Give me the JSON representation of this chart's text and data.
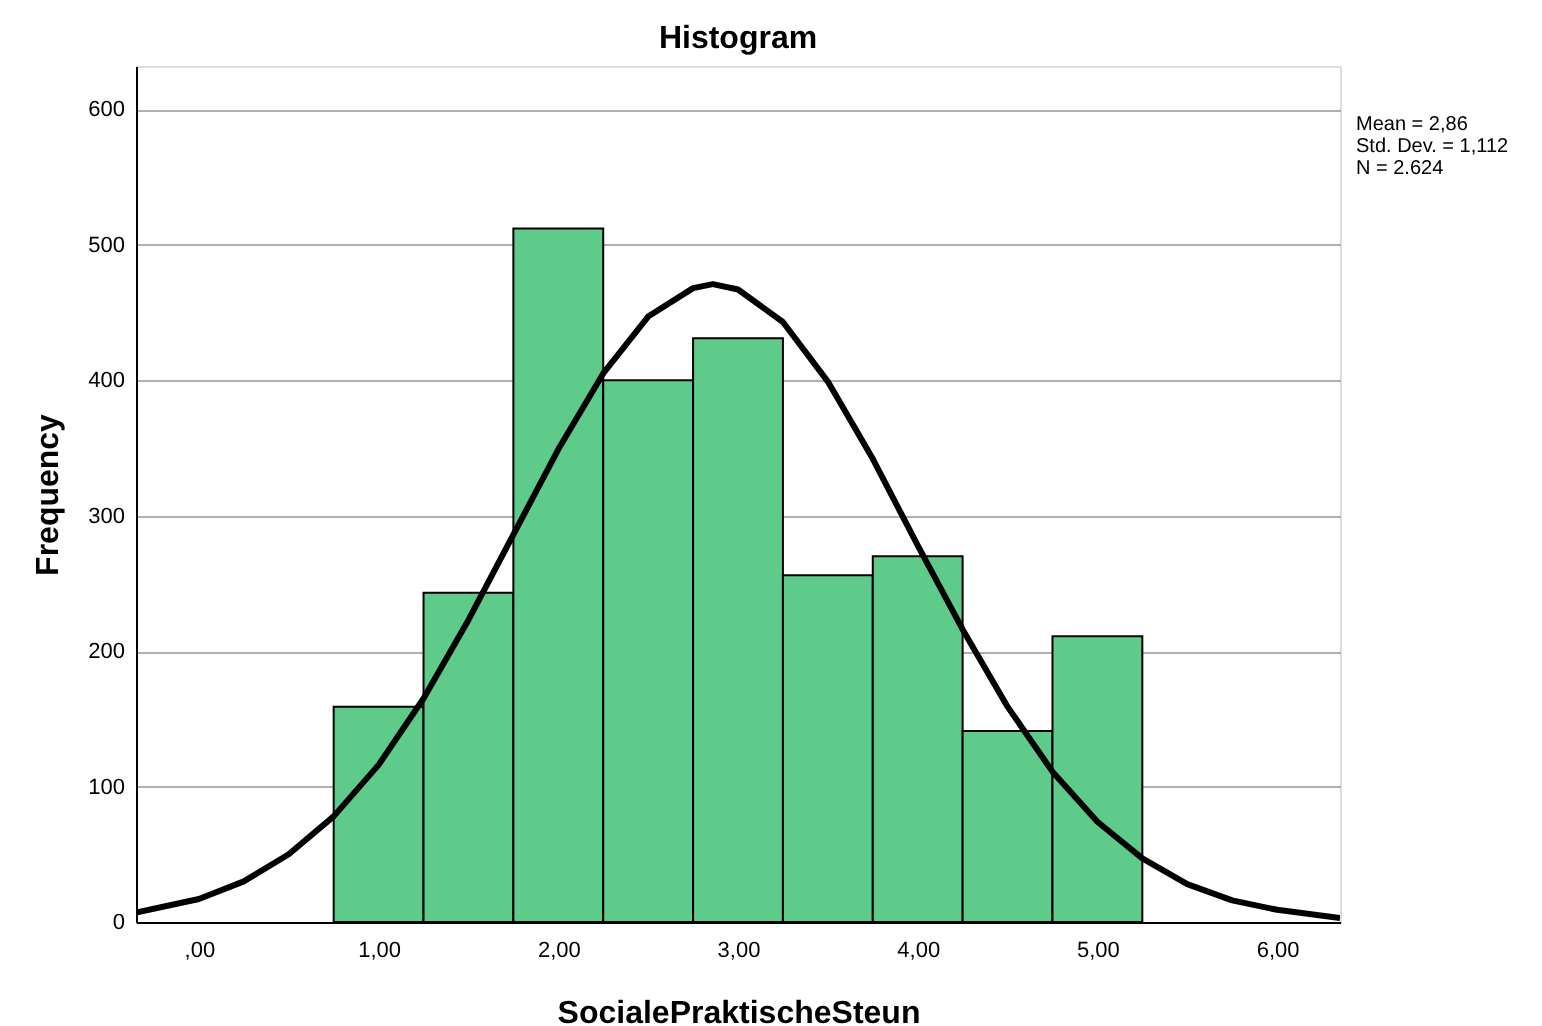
{
  "chart_data": {
    "type": "histogram",
    "title": "Histogram",
    "xlabel": "SocialePraktischeSteun",
    "ylabel": "Frequency",
    "bins": [
      0.75,
      1.25,
      1.75,
      2.25,
      2.75,
      3.25,
      3.75,
      4.25,
      4.75,
      5.25
    ],
    "values": [
      159,
      243,
      512,
      400,
      431,
      256,
      270,
      141,
      211
    ],
    "color": "#5ecb8a",
    "series": [
      {
        "type": "line",
        "color": "#000000",
        "x": [
          -0.35,
          0,
          0.25,
          0.5,
          0.75,
          1,
          1.25,
          1.5,
          1.75,
          2,
          2.25,
          2.5,
          2.75,
          2.86,
          3,
          3.25,
          3.5,
          3.75,
          4,
          4.25,
          4.5,
          4.75,
          5,
          5.25,
          5.5,
          5.75,
          6,
          6.35
        ],
        "values": [
          7,
          17,
          30,
          50,
          78,
          116,
          165,
          223,
          286,
          349,
          405,
          447,
          468,
          471,
          467,
          443,
          399,
          342,
          278,
          216,
          159,
          111,
          74,
          47,
          28,
          16,
          9,
          3
        ]
      }
    ],
    "xlim": [
      -0.35,
      6.35
    ],
    "xticks": [
      {
        "value": 0,
        "label": ",00"
      },
      {
        "value": 1,
        "label": "1,00"
      },
      {
        "value": 2,
        "label": "2,00"
      },
      {
        "value": 3,
        "label": "3,00"
      },
      {
        "value": 4,
        "label": "4,00"
      },
      {
        "value": 5,
        "label": "5,00"
      },
      {
        "value": 6,
        "label": "6,00"
      }
    ],
    "ylim": [
      0,
      632
    ],
    "yticks": [
      0,
      100,
      200,
      300,
      400,
      500,
      600
    ],
    "grid": "y",
    "annotations": [
      "Mean = 2,86",
      "Std. Dev. = 1,112",
      "N = 2.624"
    ]
  }
}
